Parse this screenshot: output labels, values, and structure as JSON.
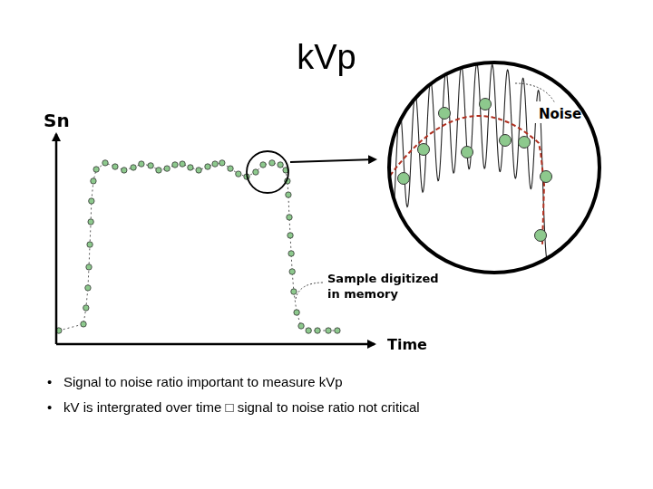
{
  "title": "kVp",
  "chart_data": {
    "type": "line",
    "x_label": "Time",
    "y_label": "Sn",
    "x": [
      0.8,
      8.5,
      9.3,
      9.9,
      10.2,
      10.5,
      10.8,
      11.0,
      11.6,
      12.5,
      15.3,
      18.4,
      21.2,
      24.1,
      26.6,
      29.5,
      32.0,
      34.6,
      37.1,
      39.4,
      41.9,
      44.5,
      47.3,
      49.6,
      51.8,
      54.4,
      56.9,
      59.5,
      62.3,
      64.6,
      67.4,
      70.0,
      71.7,
      72.2,
      72.5,
      72.8,
      73.1,
      73.4,
      73.7,
      74.2,
      75.1,
      76.5,
      78.8,
      81.6,
      85.0,
      87.8
    ],
    "values": [
      6.5,
      9.6,
      17.4,
      27.0,
      37.0,
      47.8,
      58.7,
      68.7,
      78.3,
      83.9,
      87.0,
      85.2,
      83.5,
      84.8,
      86.5,
      85.7,
      83.5,
      84.3,
      86.1,
      86.5,
      84.8,
      83.5,
      85.2,
      86.5,
      87.0,
      84.3,
      81.7,
      80.4,
      82.6,
      86.1,
      87.0,
      86.1,
      83.5,
      78.3,
      71.7,
      60.9,
      52.2,
      43.5,
      34.8,
      25.2,
      15.2,
      8.7,
      6.5,
      6.5,
      6.5,
      6.5
    ],
    "xlim": [
      0,
      100
    ],
    "ylim": [
      0,
      100
    ],
    "tick_labels": false,
    "grid": false,
    "marker": "circle",
    "line_style": "dotted",
    "color": "#8dc98d"
  },
  "annotations": {
    "samples": [
      "Sample digitized",
      "in memory"
    ],
    "zoom": "Noise"
  },
  "bullets": [
    "Signal to noise ratio important to measure kVp",
    "kV is intergrated over time □ signal to noise ratio not critical"
  ]
}
